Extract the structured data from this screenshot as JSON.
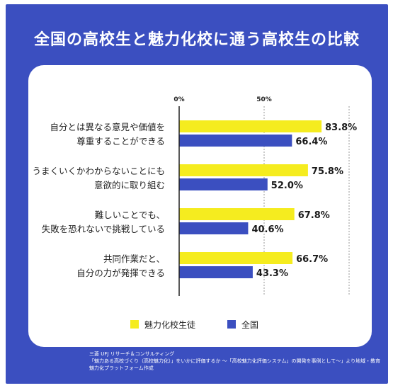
{
  "title": "全国の高校生と魅力化校に通う高校生の比較",
  "chart_data": {
    "type": "bar",
    "orientation": "horizontal",
    "title": "全国の高校生と魅力化校に通う高校生の比較",
    "xlim": [
      0,
      100
    ],
    "ticks": [
      {
        "value": 0,
        "label": "0%"
      },
      {
        "value": 50,
        "label": "50%"
      }
    ],
    "grid": "dashed vertical lines at 50% and 100%",
    "categories": [
      [
        "自分とは異なる意見や価値を",
        "尊重することができる"
      ],
      [
        "うまくいくかわからないことにも",
        "意欲的に取り組む"
      ],
      [
        "難しいことでも、",
        "失敗を恐れないで挑戦している"
      ],
      [
        "共同作業だと、",
        "自分の力が発揮できる"
      ]
    ],
    "series": [
      {
        "name": "魅力化校生徒",
        "color": "#f5ec1f",
        "values": [
          83.8,
          75.8,
          67.8,
          66.7
        ],
        "labels": [
          "83.8%",
          "75.8%",
          "67.8%",
          "66.7%"
        ]
      },
      {
        "name": "全国",
        "color": "#3b4fc0",
        "values": [
          66.4,
          52.0,
          40.6,
          43.3
        ],
        "labels": [
          "66.4%",
          "52.0%",
          "40.6%",
          "43.3%"
        ]
      }
    ],
    "legend": "bottom"
  },
  "source": [
    "三菱 UFJ リサーチ＆コンサルティング",
    "「魅力ある高校づくり（高校魅力化）」をいかに評価するか 〜「高校魅力化評価システム」の開発を事例として〜」より地域・教育",
    "魅力化プラットフォーム作成"
  ]
}
